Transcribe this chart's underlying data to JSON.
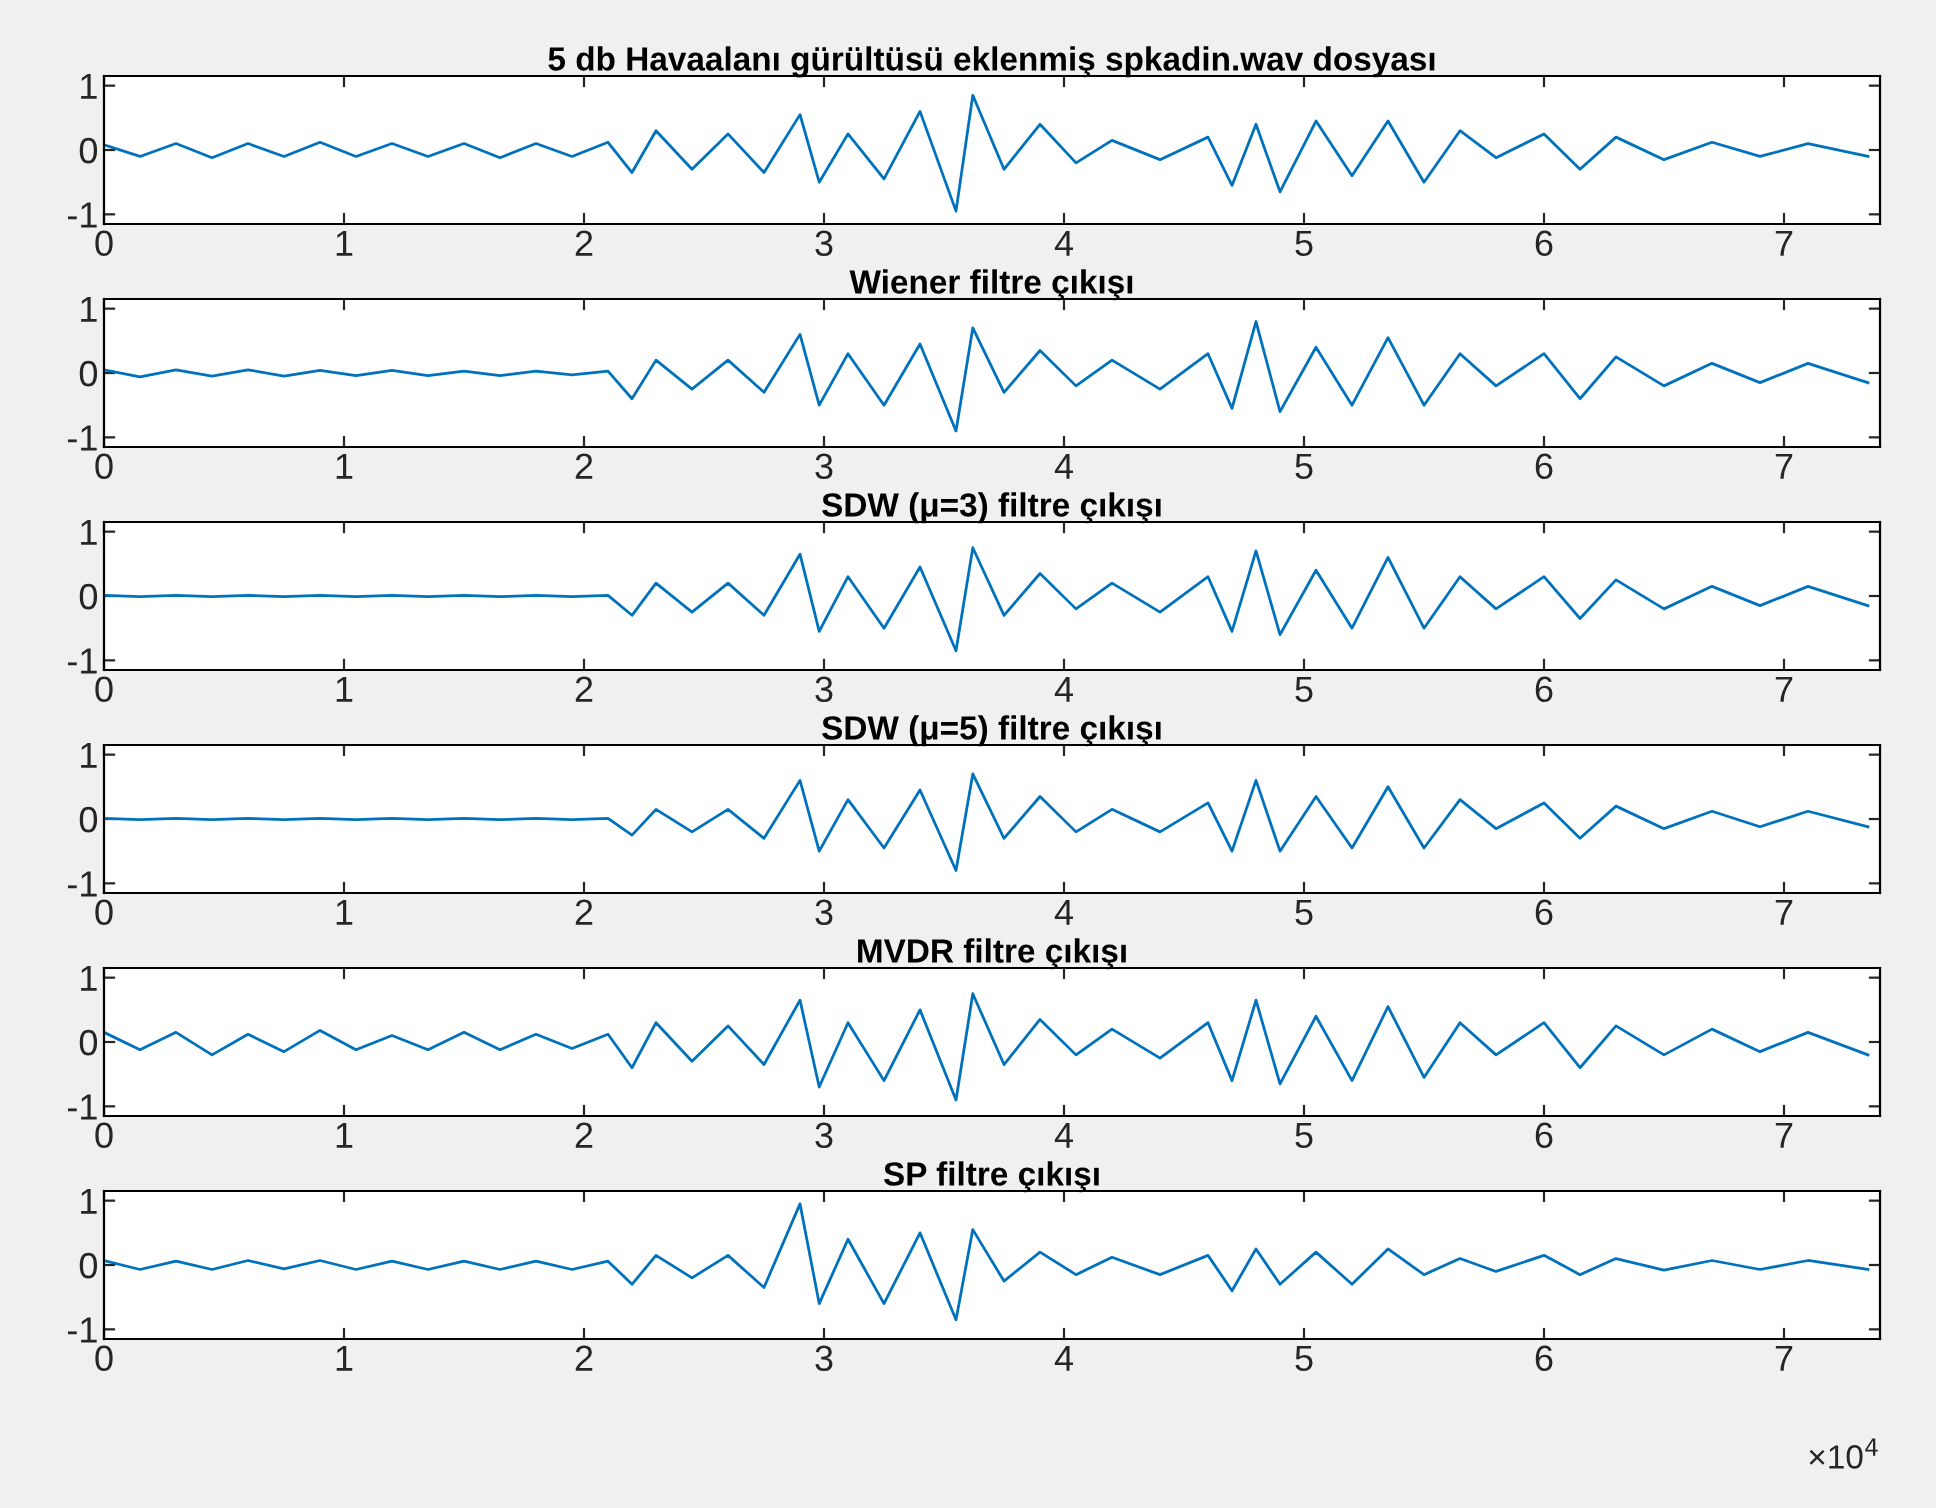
{
  "chart_data": [
    {
      "type": "line",
      "title": "5 db Havaalanı gürültüsü eklenmiş spkadin.wav dosyası",
      "color": "#0072bd",
      "xlim": [
        0,
        7.4
      ],
      "ylim": [
        -1.15,
        1.15
      ],
      "yticks": [
        -1,
        0,
        1
      ],
      "xticks": [
        0,
        1,
        2,
        3,
        4,
        5,
        6,
        7
      ],
      "grid": false,
      "x": [
        0,
        0.15,
        0.3,
        0.45,
        0.6,
        0.75,
        0.9,
        1.05,
        1.2,
        1.35,
        1.5,
        1.65,
        1.8,
        1.95,
        2.1,
        2.2,
        2.3,
        2.45,
        2.6,
        2.75,
        2.9,
        2.98,
        3.1,
        3.25,
        3.4,
        3.55,
        3.62,
        3.75,
        3.9,
        4.05,
        4.2,
        4.4,
        4.6,
        4.7,
        4.8,
        4.9,
        5.05,
        5.2,
        5.35,
        5.5,
        5.65,
        5.8,
        6.0,
        6.15,
        6.3,
        6.5,
        6.7,
        6.9,
        7.1,
        7.35
      ],
      "values": [
        0.08,
        -0.1,
        0.1,
        -0.12,
        0.1,
        -0.1,
        0.12,
        -0.1,
        0.1,
        -0.1,
        0.1,
        -0.12,
        0.1,
        -0.1,
        0.12,
        -0.35,
        0.3,
        -0.3,
        0.25,
        -0.35,
        0.55,
        -0.5,
        0.25,
        -0.45,
        0.6,
        -0.95,
        0.85,
        -0.3,
        0.4,
        -0.2,
        0.15,
        -0.15,
        0.2,
        -0.55,
        0.4,
        -0.65,
        0.45,
        -0.4,
        0.45,
        -0.5,
        0.3,
        -0.12,
        0.25,
        -0.3,
        0.2,
        -0.15,
        0.12,
        -0.1,
        0.1,
        -0.1
      ]
    },
    {
      "type": "line",
      "title": "Wiener filtre çıkışı",
      "color": "#0072bd",
      "xlim": [
        0,
        7.4
      ],
      "ylim": [
        -1.15,
        1.15
      ],
      "yticks": [
        -1,
        0,
        1
      ],
      "xticks": [
        0,
        1,
        2,
        3,
        4,
        5,
        6,
        7
      ],
      "grid": false,
      "x": [
        0,
        0.15,
        0.3,
        0.45,
        0.6,
        0.75,
        0.9,
        1.05,
        1.2,
        1.35,
        1.5,
        1.65,
        1.8,
        1.95,
        2.1,
        2.2,
        2.3,
        2.45,
        2.6,
        2.75,
        2.9,
        2.98,
        3.1,
        3.25,
        3.4,
        3.55,
        3.62,
        3.75,
        3.9,
        4.05,
        4.2,
        4.4,
        4.6,
        4.7,
        4.8,
        4.9,
        5.05,
        5.2,
        5.35,
        5.5,
        5.65,
        5.8,
        6.0,
        6.15,
        6.3,
        6.5,
        6.7,
        6.9,
        7.1,
        7.35
      ],
      "values": [
        0.05,
        -0.06,
        0.05,
        -0.05,
        0.05,
        -0.05,
        0.04,
        -0.04,
        0.04,
        -0.04,
        0.03,
        -0.04,
        0.03,
        -0.03,
        0.03,
        -0.4,
        0.2,
        -0.25,
        0.2,
        -0.3,
        0.6,
        -0.5,
        0.3,
        -0.5,
        0.45,
        -0.9,
        0.7,
        -0.3,
        0.35,
        -0.2,
        0.2,
        -0.25,
        0.3,
        -0.55,
        0.8,
        -0.6,
        0.4,
        -0.5,
        0.55,
        -0.5,
        0.3,
        -0.2,
        0.3,
        -0.4,
        0.25,
        -0.2,
        0.15,
        -0.15,
        0.15,
        -0.15
      ]
    },
    {
      "type": "line",
      "title": "SDW (μ=3) filtre çıkışı",
      "color": "#0072bd",
      "xlim": [
        0,
        7.4
      ],
      "ylim": [
        -1.15,
        1.15
      ],
      "yticks": [
        -1,
        0,
        1
      ],
      "xticks": [
        0,
        1,
        2,
        3,
        4,
        5,
        6,
        7
      ],
      "grid": false,
      "x": [
        0,
        0.15,
        0.3,
        0.45,
        0.6,
        0.75,
        0.9,
        1.05,
        1.2,
        1.35,
        1.5,
        1.65,
        1.8,
        1.95,
        2.1,
        2.2,
        2.3,
        2.45,
        2.6,
        2.75,
        2.9,
        2.98,
        3.1,
        3.25,
        3.4,
        3.55,
        3.62,
        3.75,
        3.9,
        4.05,
        4.2,
        4.4,
        4.6,
        4.7,
        4.8,
        4.9,
        5.05,
        5.2,
        5.35,
        5.5,
        5.65,
        5.8,
        6.0,
        6.15,
        6.3,
        6.5,
        6.7,
        6.9,
        7.1,
        7.35
      ],
      "values": [
        0.01,
        -0.01,
        0.01,
        -0.01,
        0.01,
        -0.01,
        0.01,
        -0.01,
        0.01,
        -0.01,
        0.01,
        -0.01,
        0.01,
        -0.01,
        0.01,
        -0.3,
        0.2,
        -0.25,
        0.2,
        -0.3,
        0.65,
        -0.55,
        0.3,
        -0.5,
        0.45,
        -0.85,
        0.75,
        -0.3,
        0.35,
        -0.2,
        0.2,
        -0.25,
        0.3,
        -0.55,
        0.7,
        -0.6,
        0.4,
        -0.5,
        0.6,
        -0.5,
        0.3,
        -0.2,
        0.3,
        -0.35,
        0.25,
        -0.2,
        0.15,
        -0.15,
        0.15,
        -0.15
      ]
    },
    {
      "type": "line",
      "title": "SDW (μ=5) filtre çıkışı",
      "color": "#0072bd",
      "xlim": [
        0,
        7.4
      ],
      "ylim": [
        -1.15,
        1.15
      ],
      "yticks": [
        -1,
        0,
        1
      ],
      "xticks": [
        0,
        1,
        2,
        3,
        4,
        5,
        6,
        7
      ],
      "grid": false,
      "x": [
        0,
        0.15,
        0.3,
        0.45,
        0.6,
        0.75,
        0.9,
        1.05,
        1.2,
        1.35,
        1.5,
        1.65,
        1.8,
        1.95,
        2.1,
        2.2,
        2.3,
        2.45,
        2.6,
        2.75,
        2.9,
        2.98,
        3.1,
        3.25,
        3.4,
        3.55,
        3.62,
        3.75,
        3.9,
        4.05,
        4.2,
        4.4,
        4.6,
        4.7,
        4.8,
        4.9,
        5.05,
        5.2,
        5.35,
        5.5,
        5.65,
        5.8,
        6.0,
        6.15,
        6.3,
        6.5,
        6.7,
        6.9,
        7.1,
        7.35
      ],
      "values": [
        0.01,
        -0.01,
        0.01,
        -0.01,
        0.01,
        -0.01,
        0.01,
        -0.01,
        0.01,
        -0.01,
        0.01,
        -0.01,
        0.01,
        -0.01,
        0.01,
        -0.25,
        0.15,
        -0.2,
        0.15,
        -0.3,
        0.6,
        -0.5,
        0.3,
        -0.45,
        0.45,
        -0.8,
        0.7,
        -0.3,
        0.35,
        -0.2,
        0.15,
        -0.2,
        0.25,
        -0.5,
        0.6,
        -0.5,
        0.35,
        -0.45,
        0.5,
        -0.45,
        0.3,
        -0.15,
        0.25,
        -0.3,
        0.2,
        -0.15,
        0.12,
        -0.12,
        0.12,
        -0.12
      ]
    },
    {
      "type": "line",
      "title": "MVDR filtre çıkışı",
      "color": "#0072bd",
      "xlim": [
        0,
        7.4
      ],
      "ylim": [
        -1.15,
        1.15
      ],
      "yticks": [
        -1,
        0,
        1
      ],
      "xticks": [
        0,
        1,
        2,
        3,
        4,
        5,
        6,
        7
      ],
      "grid": false,
      "x": [
        0,
        0.15,
        0.3,
        0.45,
        0.6,
        0.75,
        0.9,
        1.05,
        1.2,
        1.35,
        1.5,
        1.65,
        1.8,
        1.95,
        2.1,
        2.2,
        2.3,
        2.45,
        2.6,
        2.75,
        2.9,
        2.98,
        3.1,
        3.25,
        3.4,
        3.55,
        3.62,
        3.75,
        3.9,
        4.05,
        4.2,
        4.4,
        4.6,
        4.7,
        4.8,
        4.9,
        5.05,
        5.2,
        5.35,
        5.5,
        5.65,
        5.8,
        6.0,
        6.15,
        6.3,
        6.5,
        6.7,
        6.9,
        7.1,
        7.35
      ],
      "values": [
        0.15,
        -0.12,
        0.15,
        -0.2,
        0.12,
        -0.15,
        0.18,
        -0.12,
        0.1,
        -0.12,
        0.15,
        -0.12,
        0.12,
        -0.1,
        0.12,
        -0.4,
        0.3,
        -0.3,
        0.25,
        -0.35,
        0.65,
        -0.7,
        0.3,
        -0.6,
        0.5,
        -0.9,
        0.75,
        -0.35,
        0.35,
        -0.2,
        0.2,
        -0.25,
        0.3,
        -0.6,
        0.65,
        -0.65,
        0.4,
        -0.6,
        0.55,
        -0.55,
        0.3,
        -0.2,
        0.3,
        -0.4,
        0.25,
        -0.2,
        0.2,
        -0.15,
        0.15,
        -0.2
      ]
    },
    {
      "type": "line",
      "title": "SP filtre çıkışı",
      "color": "#0072bd",
      "xlim": [
        0,
        7.4
      ],
      "ylim": [
        -1.15,
        1.15
      ],
      "yticks": [
        -1,
        0,
        1
      ],
      "xticks": [
        0,
        1,
        2,
        3,
        4,
        5,
        6,
        7
      ],
      "grid": false,
      "annotations": [
        "×10$^{4}$"
      ],
      "x": [
        0,
        0.15,
        0.3,
        0.45,
        0.6,
        0.75,
        0.9,
        1.05,
        1.2,
        1.35,
        1.5,
        1.65,
        1.8,
        1.95,
        2.1,
        2.2,
        2.3,
        2.45,
        2.6,
        2.75,
        2.9,
        2.98,
        3.1,
        3.25,
        3.4,
        3.55,
        3.62,
        3.75,
        3.9,
        4.05,
        4.2,
        4.4,
        4.6,
        4.7,
        4.8,
        4.9,
        5.05,
        5.2,
        5.35,
        5.5,
        5.65,
        5.8,
        6.0,
        6.15,
        6.3,
        6.5,
        6.7,
        6.9,
        7.1,
        7.35
      ],
      "values": [
        0.07,
        -0.07,
        0.06,
        -0.07,
        0.07,
        -0.06,
        0.07,
        -0.07,
        0.06,
        -0.07,
        0.06,
        -0.07,
        0.06,
        -0.07,
        0.06,
        -0.3,
        0.15,
        -0.2,
        0.15,
        -0.35,
        0.95,
        -0.6,
        0.4,
        -0.6,
        0.5,
        -0.85,
        0.55,
        -0.25,
        0.2,
        -0.15,
        0.12,
        -0.15,
        0.15,
        -0.4,
        0.25,
        -0.3,
        0.2,
        -0.3,
        0.25,
        -0.15,
        0.1,
        -0.1,
        0.15,
        -0.15,
        0.1,
        -0.08,
        0.07,
        -0.07,
        0.07,
        -0.07
      ]
    }
  ]
}
